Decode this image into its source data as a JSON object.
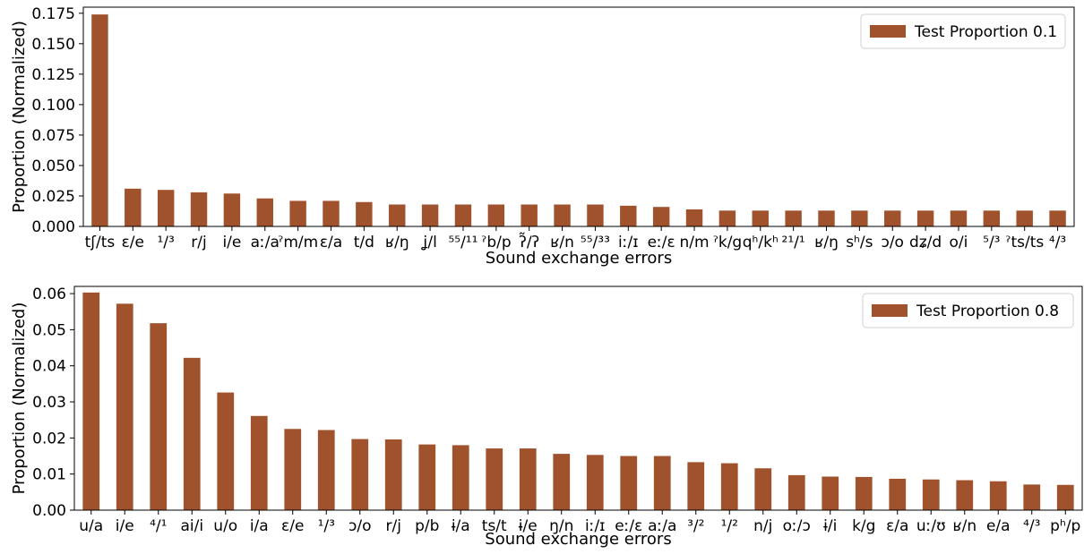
{
  "chart_data": [
    {
      "type": "bar",
      "xlabel": "Sound exchange errors",
      "ylabel": "Proportion (Normalized)",
      "ylim": [
        0,
        0.18
      ],
      "yticks": [
        "0.000",
        "0.025",
        "0.050",
        "0.075",
        "0.100",
        "0.125",
        "0.150",
        "0.175"
      ],
      "legend": "top-right",
      "grid": false,
      "color": "#A0522D",
      "categories": [
        "tʃ/ts",
        "ɛ/e",
        "¹/³",
        "r/j",
        "i/e",
        "aː/a",
        "ˀm/m",
        "ɛ/a",
        "t/d",
        "ʁ/ŋ",
        "ʝ/l",
        "⁵⁵/¹¹",
        "ˀb/p",
        "ʔ̃/ʔ",
        "ʁ/n",
        "⁵⁵/³³",
        "iː/ɪ",
        "eː/ɛ",
        "n/m",
        "ˀk/g",
        "qʰ/kʰ",
        "²¹/¹",
        "ʁ/ŋ",
        "sʰ/s",
        "ɔ/o",
        "dʑ/d",
        "o/i",
        "⁵/³",
        "ˀts/ts",
        "⁴/³"
      ],
      "series": [
        {
          "name": "Test Proportion 0.1",
          "values": [
            0.174,
            0.031,
            0.03,
            0.028,
            0.027,
            0.023,
            0.021,
            0.021,
            0.02,
            0.018,
            0.018,
            0.018,
            0.018,
            0.018,
            0.018,
            0.018,
            0.017,
            0.016,
            0.014,
            0.013,
            0.013,
            0.013,
            0.013,
            0.013,
            0.013,
            0.013,
            0.013,
            0.013,
            0.013,
            0.013
          ]
        }
      ]
    },
    {
      "type": "bar",
      "xlabel": "Sound exchange errors",
      "ylabel": "Proportion (Normalized)",
      "ylim": [
        0,
        0.062
      ],
      "yticks": [
        "0.00",
        "0.01",
        "0.02",
        "0.03",
        "0.04",
        "0.05",
        "0.06"
      ],
      "legend": "top-right",
      "grid": false,
      "color": "#A0522D",
      "categories": [
        "u/a",
        "i/e",
        "⁴/¹",
        "ai/i",
        "u/o",
        "i/a",
        "ɛ/e",
        "¹/³",
        "ɔ/o",
        "r/j",
        "p/b",
        "ɨ/a",
        "ts/t",
        "ɨ/e",
        "ŋ/n",
        "iː/ɪ",
        "eː/ɛ",
        "aː/a",
        "³/²",
        "¹/²",
        "n/j",
        "oː/ɔ",
        "ɨ/i",
        "k/g",
        "ɛ/a",
        "uː/ʊ",
        "ʁ/n",
        "e/a",
        "⁴/³",
        "pʰ/p"
      ],
      "series": [
        {
          "name": "Test Proportion 0.8",
          "values": [
            0.0603,
            0.0572,
            0.0518,
            0.0422,
            0.0326,
            0.0261,
            0.0225,
            0.0222,
            0.0197,
            0.0196,
            0.0182,
            0.018,
            0.0171,
            0.0171,
            0.0156,
            0.0153,
            0.015,
            0.015,
            0.0133,
            0.013,
            0.0116,
            0.0097,
            0.0093,
            0.0092,
            0.0087,
            0.0085,
            0.0083,
            0.008,
            0.0071,
            0.007
          ]
        }
      ]
    }
  ]
}
